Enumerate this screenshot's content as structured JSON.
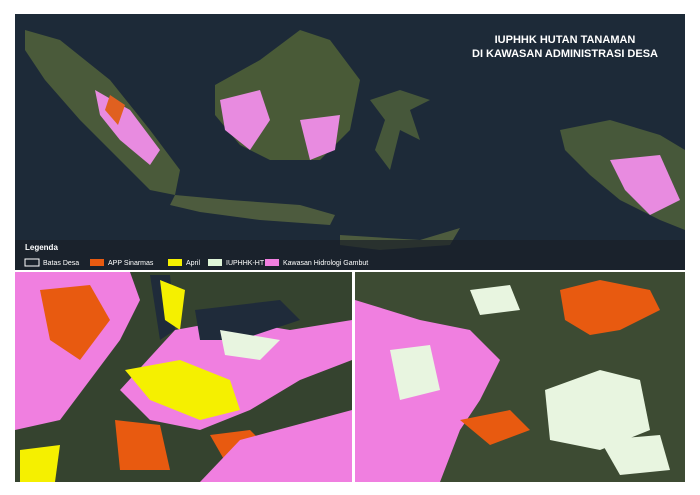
{
  "map": {
    "title": [
      "IUPHHK HUTAN TANAMAN",
      "DI KAWASAN ADMINISTRASI DESA"
    ],
    "legend": {
      "title": "Legenda",
      "items": [
        "Batas Desa",
        "APP Sinarmas",
        "April",
        "IUPHHK-HT",
        "Kawasan Hidrologi Gambut"
      ]
    }
  }
}
